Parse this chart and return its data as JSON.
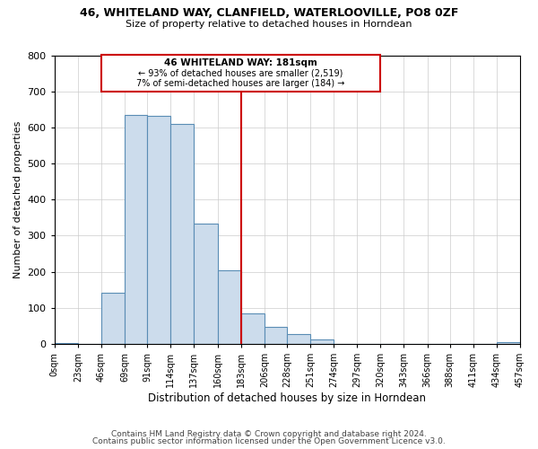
{
  "title": "46, WHITELAND WAY, CLANFIELD, WATERLOOVILLE, PO8 0ZF",
  "subtitle": "Size of property relative to detached houses in Horndean",
  "xlabel": "Distribution of detached houses by size in Horndean",
  "ylabel": "Number of detached properties",
  "bin_labels": [
    "0sqm",
    "23sqm",
    "46sqm",
    "69sqm",
    "91sqm",
    "114sqm",
    "137sqm",
    "160sqm",
    "183sqm",
    "206sqm",
    "228sqm",
    "251sqm",
    "274sqm",
    "297sqm",
    "320sqm",
    "343sqm",
    "366sqm",
    "388sqm",
    "411sqm",
    "434sqm",
    "457sqm"
  ],
  "bin_edges": [
    0,
    23,
    46,
    69,
    91,
    114,
    137,
    160,
    183,
    206,
    228,
    251,
    274,
    297,
    320,
    343,
    366,
    388,
    411,
    434,
    457
  ],
  "bar_heights": [
    3,
    0,
    142,
    635,
    632,
    609,
    333,
    203,
    84,
    47,
    28,
    12,
    0,
    0,
    0,
    0,
    0,
    0,
    0,
    5
  ],
  "bar_color": "#ccdcec",
  "bar_edge_color": "#5a8db5",
  "vline_x": 183,
  "vline_color": "#cc0000",
  "ann_line1": "46 WHITELAND WAY: 181sqm",
  "ann_line2": "← 93% of detached houses are smaller (2,519)",
  "ann_line3": "7% of semi-detached houses are larger (184) →",
  "ylim": [
    0,
    800
  ],
  "yticks": [
    0,
    100,
    200,
    300,
    400,
    500,
    600,
    700,
    800
  ],
  "footer_line1": "Contains HM Land Registry data © Crown copyright and database right 2024.",
  "footer_line2": "Contains public sector information licensed under the Open Government Licence v3.0.",
  "background_color": "#ffffff",
  "grid_color": "#cccccc"
}
